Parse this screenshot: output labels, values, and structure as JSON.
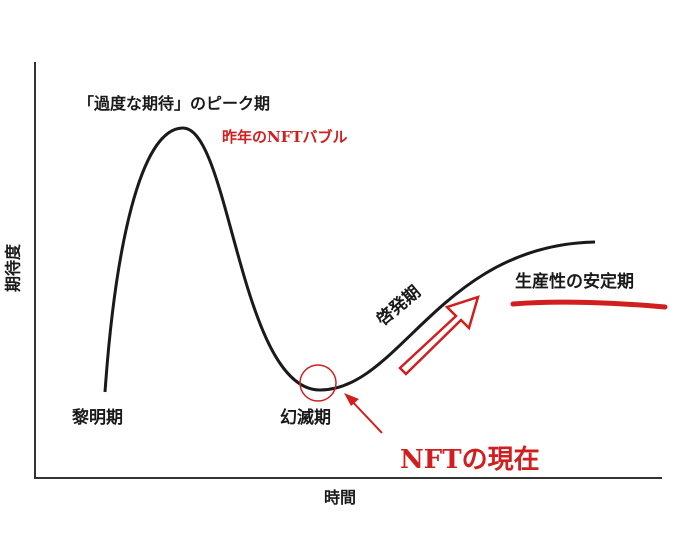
{
  "diagram": {
    "y_axis_label": "期待度",
    "x_axis_label": "時間",
    "phases": {
      "peak": "「過度な期待」のピーク期",
      "trigger": "黎明期",
      "trough": "幻滅期",
      "slope": "啓発期",
      "plateau": "生産性の安定期"
    },
    "annotations": {
      "last_year": "昨年のNFTバブル",
      "now": "NFTの現在"
    }
  }
}
